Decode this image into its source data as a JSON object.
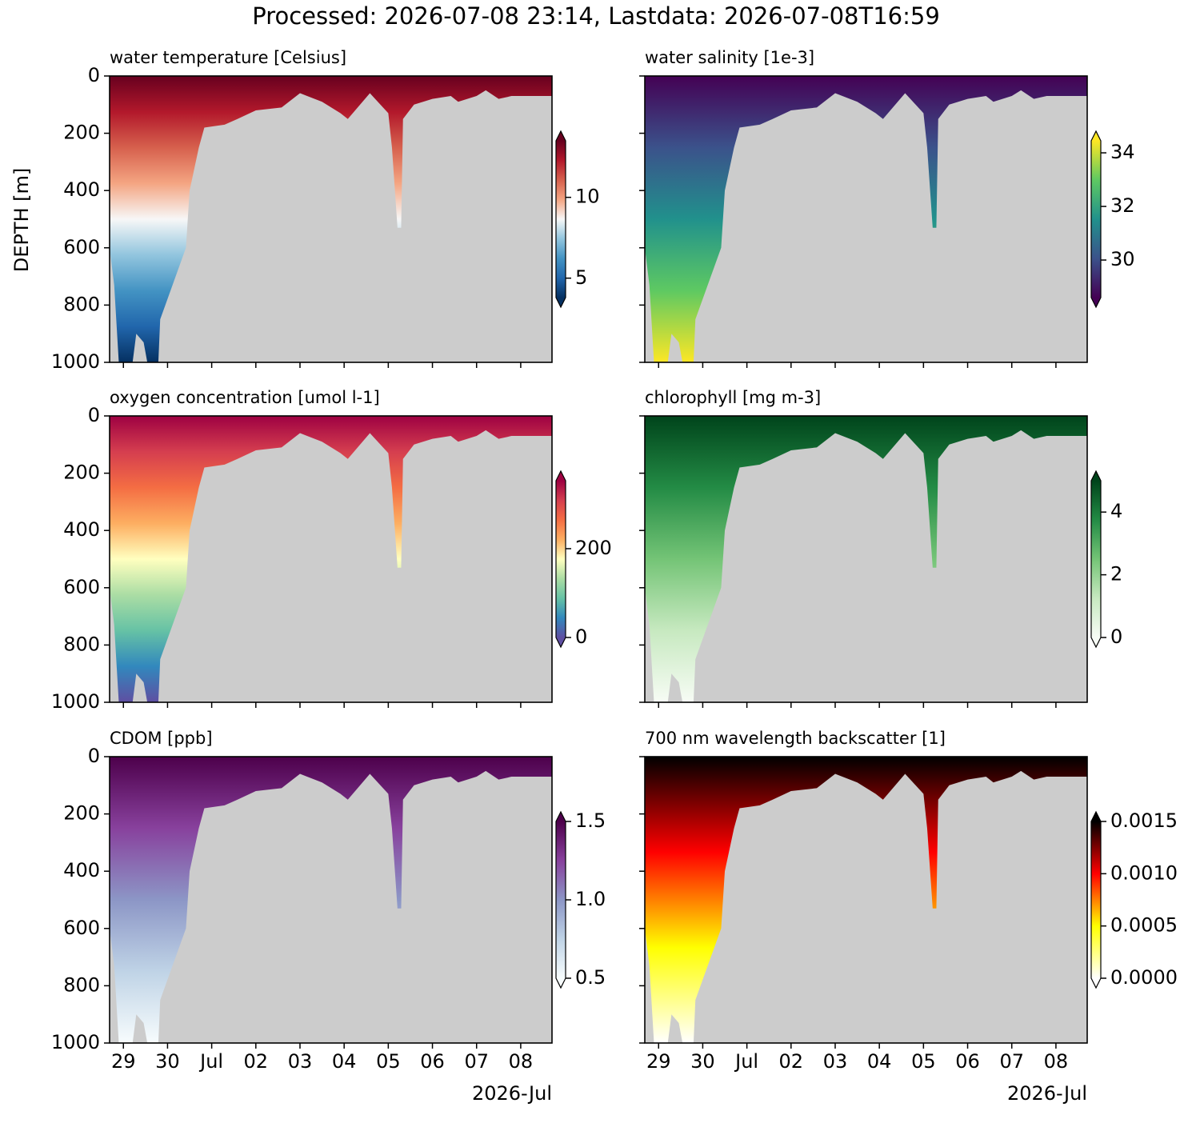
{
  "title": "Processed: 2026-07-08 23:14, Lastdata: 2026-07-08T16:59",
  "chart_data": [
    {
      "type": "pcolormesh",
      "title": "water temperature [Celsius]",
      "ylabel": "DEPTH [m]",
      "ylim": [
        1000,
        0
      ],
      "yticks": [
        0,
        200,
        400,
        600,
        800,
        1000
      ],
      "xlim": [
        "2026-06-28T16:30",
        "2026-07-08T17:00"
      ],
      "xticks": [
        "2026-06-29",
        "2026-06-30",
        "2026-07-01",
        "2026-07-02",
        "2026-07-03",
        "2026-07-04",
        "2026-07-05",
        "2026-07-06",
        "2026-07-07",
        "2026-07-08"
      ],
      "x": [
        "2026-06-28T16:30",
        "2026-06-28T19:00",
        "2026-06-28T21:30",
        "2026-06-29T05:00",
        "2026-06-29T07:00",
        "2026-06-29T11:00",
        "2026-06-29T13:00",
        "2026-06-29T19:00",
        "2026-06-29T20:00",
        "2026-06-30T10:00",
        "2026-06-30T12:00",
        "2026-06-30T17:00",
        "2026-06-30T20:00",
        "2026-07-01T07:00",
        "2026-07-01T14:00",
        "2026-07-02T00:00",
        "2026-07-02T14:00",
        "2026-07-03T00:00",
        "2026-07-03T12:00",
        "2026-07-03T22:00",
        "2026-07-04T02:00",
        "2026-07-04T10:00",
        "2026-07-04T14:00",
        "2026-07-05T00:00",
        "2026-07-05T02:00",
        "2026-07-05T05:00",
        "2026-07-05T07:00",
        "2026-07-05T08:00",
        "2026-07-05T14:00",
        "2026-07-06T00:00",
        "2026-07-06T10:00",
        "2026-07-06T14:00",
        "2026-07-07T00:00",
        "2026-07-07T05:00",
        "2026-07-07T12:00",
        "2026-07-07T19:00",
        "2026-07-08T05:00",
        "2026-07-08T17:00"
      ],
      "values": [
        600,
        730,
        1000,
        1000,
        900,
        930,
        1000,
        1000,
        850,
        600,
        400,
        250,
        180,
        170,
        150,
        120,
        110,
        60,
        90,
        130,
        150,
        90,
        60,
        130,
        250,
        530,
        530,
        150,
        100,
        80,
        70,
        90,
        70,
        50,
        80,
        70,
        70,
        70
      ],
      "clim": [
        3.8,
        13.5
      ],
      "cticks": [
        5,
        10
      ],
      "colors": [
        "#053061",
        "#2166ac",
        "#4393c3",
        "#92c5de",
        "#f7f7f7",
        "#f4a582",
        "#d6604d",
        "#b2182b",
        "#67001f"
      ]
    },
    {
      "type": "pcolormesh",
      "title": "water salinity [1e-3]",
      "ylim": [
        1000,
        0
      ],
      "yticks": [
        0,
        200,
        400,
        600,
        800,
        1000
      ],
      "xlim": [
        "2026-06-28T16:30",
        "2026-07-08T17:00"
      ],
      "xticks": [
        "2026-06-29",
        "2026-06-30",
        "2026-07-01",
        "2026-07-02",
        "2026-07-03",
        "2026-07-04",
        "2026-07-05",
        "2026-07-06",
        "2026-07-07",
        "2026-07-08"
      ],
      "clim": [
        28.6,
        34.45
      ],
      "cticks": [
        30,
        32,
        34
      ],
      "colors": [
        "#440154",
        "#3b528b",
        "#21918c",
        "#5ec962",
        "#fde725"
      ]
    },
    {
      "type": "pcolormesh",
      "title": "oxygen concentration [umol l-1]",
      "ylim": [
        1000,
        0
      ],
      "yticks": [
        0,
        200,
        400,
        600,
        800,
        1000
      ],
      "xlim": [
        "2026-06-28T16:30",
        "2026-07-08T17:00"
      ],
      "xticks": [
        "2026-06-29",
        "2026-06-30",
        "2026-07-01",
        "2026-07-02",
        "2026-07-03",
        "2026-07-04",
        "2026-07-05",
        "2026-07-06",
        "2026-07-07",
        "2026-07-08"
      ],
      "clim": [
        0,
        353
      ],
      "cticks": [
        0,
        200
      ],
      "colors": [
        "#5e4fa2",
        "#3288bd",
        "#66c2a5",
        "#abdda4",
        "#ffffbf",
        "#fdae61",
        "#f46d43",
        "#d53e4f",
        "#9e0142"
      ]
    },
    {
      "type": "pcolormesh",
      "title": "chlorophyll [mg m-3]",
      "ylim": [
        1000,
        0
      ],
      "yticks": [
        0,
        200,
        400,
        600,
        800,
        1000
      ],
      "xlim": [
        "2026-06-28T16:30",
        "2026-07-08T17:00"
      ],
      "xticks": [
        "2026-06-29",
        "2026-06-30",
        "2026-07-01",
        "2026-07-02",
        "2026-07-03",
        "2026-07-04",
        "2026-07-05",
        "2026-07-06",
        "2026-07-07",
        "2026-07-08"
      ],
      "clim": [
        0,
        5
      ],
      "cticks": [
        0,
        2,
        4
      ],
      "colors": [
        "#f7fcf5",
        "#c7e9c0",
        "#74c476",
        "#238b45",
        "#00441b"
      ]
    },
    {
      "type": "pcolormesh",
      "title": "CDOM [ppb]",
      "x_offset_label": "2026-Jul",
      "ylim": [
        1000,
        0
      ],
      "yticks": [
        0,
        200,
        400,
        600,
        800,
        1000
      ],
      "xlim": [
        "2026-06-28T16:30",
        "2026-07-08T17:00"
      ],
      "xticks": [
        {
          "value": "2026-06-29",
          "label": "29"
        },
        {
          "value": "2026-06-30",
          "label": "30"
        },
        {
          "value": "2026-07-01",
          "label": "Jul"
        },
        {
          "value": "2026-07-02",
          "label": "02"
        },
        {
          "value": "2026-07-03",
          "label": "03"
        },
        {
          "value": "2026-07-04",
          "label": "04"
        },
        {
          "value": "2026-07-05",
          "label": "05"
        },
        {
          "value": "2026-07-06",
          "label": "06"
        },
        {
          "value": "2026-07-07",
          "label": "07"
        },
        {
          "value": "2026-07-08",
          "label": "08"
        }
      ],
      "clim": [
        0.5,
        1.5
      ],
      "cticks": [
        0.5,
        {
          "value": 1.0,
          "label": "1.0"
        },
        1.5
      ],
      "colors": [
        "#f7fcfd",
        "#bfd3e6",
        "#8c96c6",
        "#88419d",
        "#4d004b"
      ]
    },
    {
      "type": "pcolormesh",
      "title": "700 nm wavelength backscatter [1]",
      "x_offset_label": "2026-Jul",
      "ylim": [
        1000,
        0
      ],
      "yticks": [
        0,
        200,
        400,
        600,
        800,
        1000
      ],
      "xlim": [
        "2026-06-28T16:30",
        "2026-07-08T17:00"
      ],
      "xticks": [
        {
          "value": "2026-06-29",
          "label": "29"
        },
        {
          "value": "2026-06-30",
          "label": "30"
        },
        {
          "value": "2026-07-01",
          "label": "Jul"
        },
        {
          "value": "2026-07-02",
          "label": "02"
        },
        {
          "value": "2026-07-03",
          "label": "03"
        },
        {
          "value": "2026-07-04",
          "label": "04"
        },
        {
          "value": "2026-07-05",
          "label": "05"
        },
        {
          "value": "2026-07-06",
          "label": "06"
        },
        {
          "value": "2026-07-07",
          "label": "07"
        },
        {
          "value": "2026-07-08",
          "label": "08"
        }
      ],
      "clim": [
        0,
        0.0015
      ],
      "cticks": [
        {
          "value": 0,
          "label": "0.0000"
        },
        {
          "value": 0.0005,
          "label": "0.0005"
        },
        {
          "value": 0.001,
          "label": "0.0010"
        },
        0.0015
      ],
      "colors": [
        "#ffffff",
        "#ffff00",
        "#ff0000",
        "#000000"
      ]
    }
  ]
}
